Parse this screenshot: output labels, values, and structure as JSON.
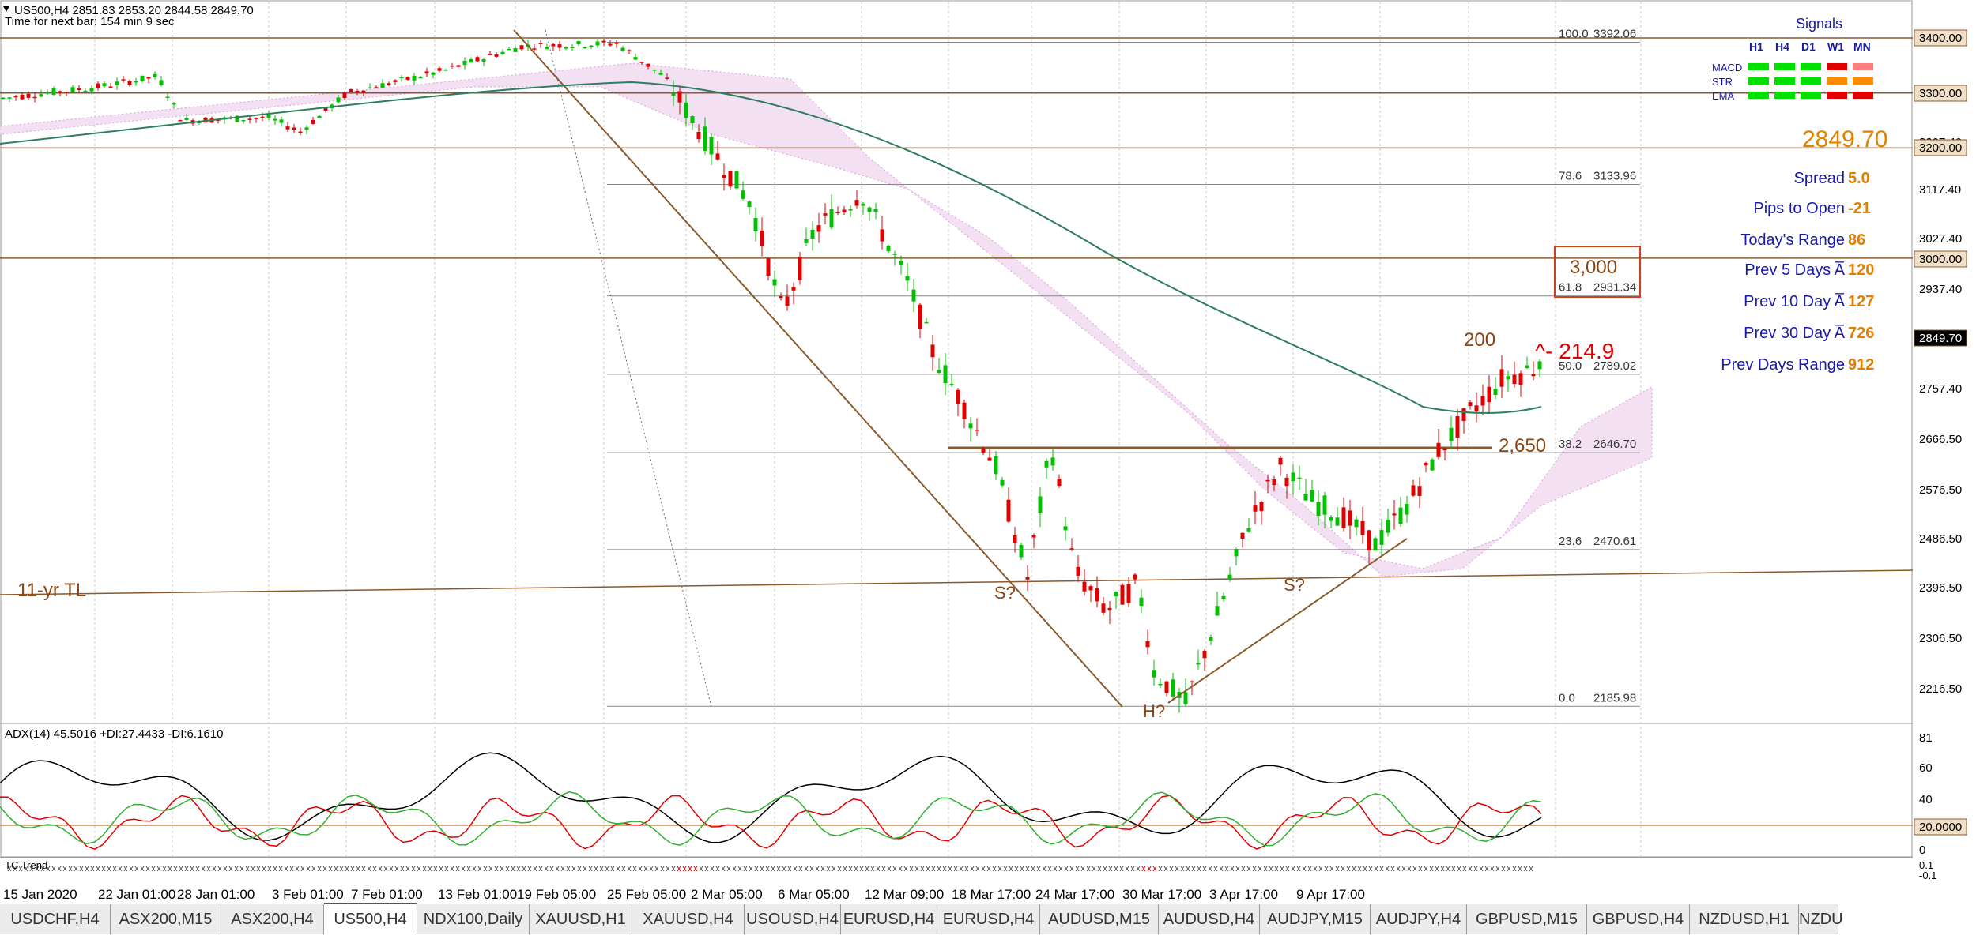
{
  "header": {
    "symbol_line": "US500,H4  2851.83 2853.20 2844.58 2849.70",
    "timer_line": "Time for next bar: 154 min 9 sec"
  },
  "price_axis": {
    "labels": [
      "3400.00",
      "3300.00",
      "3207.40",
      "3200.00",
      "3117.40",
      "3027.40",
      "3000.00",
      "2937.40",
      "2849.70",
      "2757.40",
      "2666.50",
      "2576.50",
      "2486.50",
      "2396.50",
      "2306.50",
      "2216.50"
    ],
    "highlighted": [
      "3400.00",
      "3300.00",
      "3200.00",
      "3000.00",
      "2849.70"
    ],
    "current": "2849.70"
  },
  "fib_levels": [
    {
      "ratio": "100.0",
      "price": "3392.06"
    },
    {
      "ratio": "78.6",
      "price": "3133.96"
    },
    {
      "ratio": "61.8",
      "price": "2931.34"
    },
    {
      "ratio": "50.0",
      "price": "2789.02"
    },
    {
      "ratio": "38.2",
      "price": "2646.70"
    },
    {
      "ratio": "23.6",
      "price": "2470.61"
    },
    {
      "ratio": "0.0",
      "price": "2185.98"
    }
  ],
  "annotations": {
    "trendline_label": "11-yr TL",
    "left_shoulder": "S?",
    "head": "H?",
    "right_shoulder": "S?",
    "neckline_label": "2,650",
    "target_box": "3,000",
    "ma_label": "200",
    "arrow_label": "^- 214.9"
  },
  "signals": {
    "title": "Signals",
    "timeframes": [
      "H1",
      "H4",
      "D1",
      "W1",
      "MN"
    ],
    "rows": [
      {
        "name": "MACD",
        "colors": [
          "#00e000",
          "#00e000",
          "#00e000",
          "#e00000",
          "#ff8080"
        ]
      },
      {
        "name": "STR",
        "colors": [
          "#00e000",
          "#00e000",
          "#00e000",
          "#ff8c00",
          "#ff8c00"
        ]
      },
      {
        "name": "EMA",
        "colors": [
          "#00e000",
          "#00e000",
          "#00e000",
          "#e00000",
          "#e00000"
        ]
      }
    ]
  },
  "info_panel": {
    "price": "2849.70",
    "rows": [
      {
        "label": "Spread",
        "value": "5.0"
      },
      {
        "label": "Pips to Open",
        "value": "-21"
      },
      {
        "label": "Today's Range",
        "value": "86"
      },
      {
        "label": "Prev 5 Days A̅",
        "value": "120"
      },
      {
        "label": "Prev 10 Day A̅",
        "value": "127"
      },
      {
        "label": "Prev 30 Day A̅",
        "value": "726"
      },
      {
        "label": "Prev Days Range",
        "value": "912"
      }
    ]
  },
  "adx": {
    "label": "ADX(14) 45.5016 +DI:27.4433 -DI:6.1610",
    "scale": [
      "81",
      "60",
      "40",
      "20.0000",
      "0"
    ]
  },
  "tc_indicator": {
    "label": "TC Trend",
    "scale": [
      "0.1",
      "-0.1"
    ]
  },
  "time_axis": [
    "15 Jan 2020",
    "22 Jan 01:00",
    "28 Jan 01:00",
    "3 Feb 01:00",
    "7 Feb 01:00",
    "13 Feb 01:00",
    "19 Feb 05:00",
    "25 Feb 05:00",
    "2 Mar 05:00",
    "6 Mar 05:00",
    "12 Mar 09:00",
    "18 Mar 17:00",
    "24 Mar 17:00",
    "30 Mar 17:00",
    "3 Apr 17:00",
    "9 Apr 17:00"
  ],
  "tabs": [
    {
      "label": "USDCHF,H4",
      "active": false
    },
    {
      "label": "ASX200,M15",
      "active": false
    },
    {
      "label": "ASX200,H4",
      "active": false
    },
    {
      "label": "US500,H4",
      "active": true
    },
    {
      "label": "NDX100,Daily",
      "active": false
    },
    {
      "label": "XAUUSD,H1",
      "active": false
    },
    {
      "label": "XAUUSD,H4",
      "active": false
    },
    {
      "label": "USOUSD,H4",
      "active": false
    },
    {
      "label": "EURUSD,H4",
      "active": false
    },
    {
      "label": "EURUSD,H4",
      "active": false
    },
    {
      "label": "AUDUSD,M15",
      "active": false
    },
    {
      "label": "AUDUSD,H4",
      "active": false
    },
    {
      "label": "AUDJPY,M15",
      "active": false
    },
    {
      "label": "AUDJPY,H4",
      "active": false
    },
    {
      "label": "GBPUSD,M15",
      "active": false
    },
    {
      "label": "GBPUSD,H4",
      "active": false
    },
    {
      "label": "NZDUSD,H1",
      "active": false
    },
    {
      "label": "NZDU",
      "active": false
    }
  ],
  "colors": {
    "bull": "#00c000",
    "bear": "#e00000",
    "hline": "#8b5a2b",
    "label_brown": "#8b4513",
    "ma": "#2e7d60",
    "panel_blue": "#1a1aaa",
    "panel_orange": "#e08000"
  }
}
